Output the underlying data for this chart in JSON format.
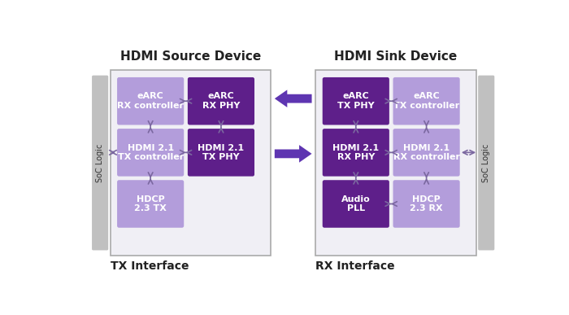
{
  "title_left": "HDMI Source Device",
  "title_right": "HDMI Sink Device",
  "label_bottom_left": "TX Interface",
  "label_bottom_right": "RX Interface",
  "soc_label": "SoC Logic",
  "bg_color": "#ffffff",
  "soc_bar_color": "#c0c0c0",
  "arr_color": "#7b68a0",
  "big_arrow_color": "#5e35b1",
  "outer_box_facecolor": "#f0eff5",
  "outer_box_edgecolor": "#aaaaaa",
  "left_blocks": [
    {
      "label": "eARC\nRX controller",
      "color": "#b39ddb",
      "row": 0,
      "col": 0
    },
    {
      "label": "eARC\nRX PHY",
      "color": "#5e1f8a",
      "row": 0,
      "col": 1
    },
    {
      "label": "HDMI 2.1\nTX controller",
      "color": "#b39ddb",
      "row": 1,
      "col": 0
    },
    {
      "label": "HDMI 2.1\nTX PHY",
      "color": "#5e1f8a",
      "row": 1,
      "col": 1
    },
    {
      "label": "HDCP\n2.3 TX",
      "color": "#b39ddb",
      "row": 2,
      "col": 0
    }
  ],
  "right_blocks": [
    {
      "label": "eARC\nTX PHY",
      "color": "#5e1f8a",
      "row": 0,
      "col": 0
    },
    {
      "label": "eARC\nTX controller",
      "color": "#b39ddb",
      "row": 0,
      "col": 1
    },
    {
      "label": "HDMI 2.1\nRX PHY",
      "color": "#5e1f8a",
      "row": 1,
      "col": 0
    },
    {
      "label": "HDMI 2.1\nRX controller",
      "color": "#b39ddb",
      "row": 1,
      "col": 1
    },
    {
      "label": "Audio\nPLL",
      "color": "#5e1f8a",
      "row": 2,
      "col": 0
    },
    {
      "label": "HDCP\n2.3 RX",
      "color": "#b39ddb",
      "row": 2,
      "col": 1
    }
  ]
}
